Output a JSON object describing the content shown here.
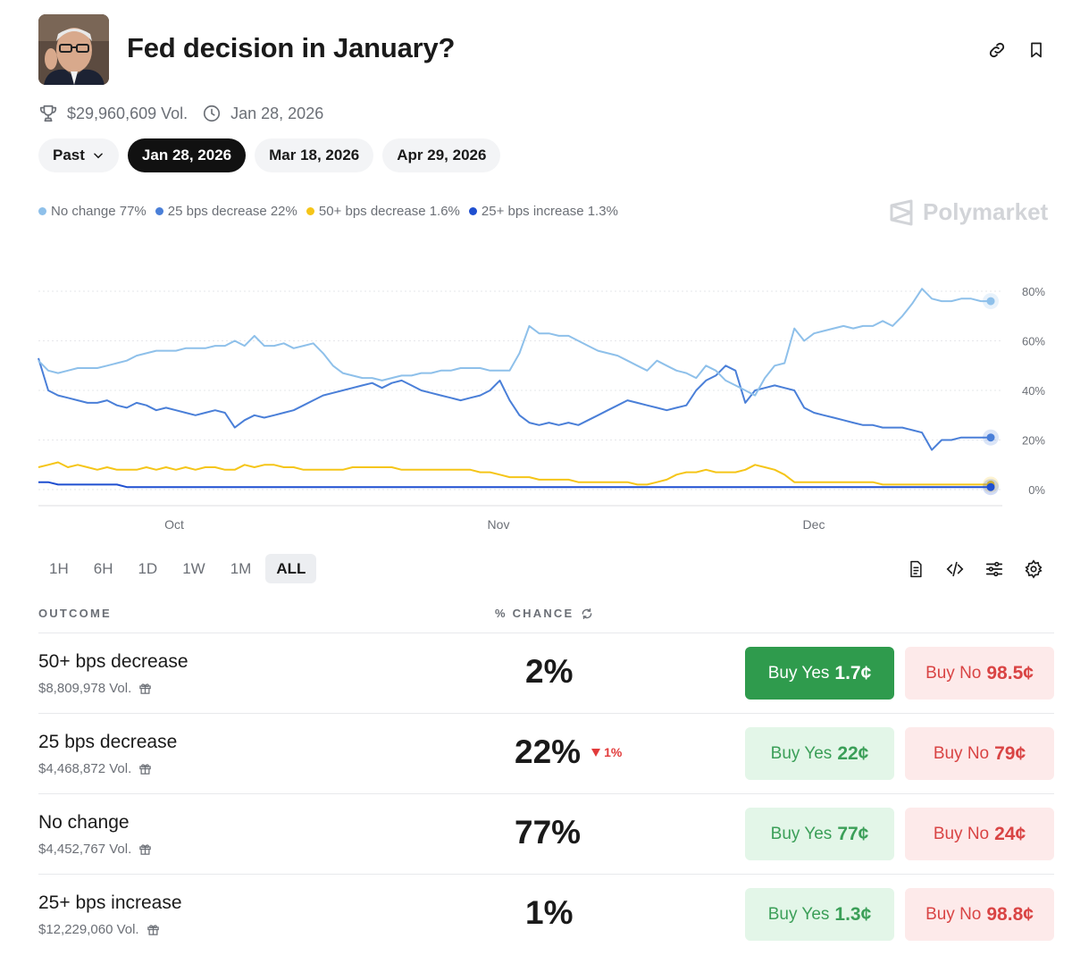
{
  "header": {
    "title": "Fed decision in January?",
    "volume": "$29,960,609 Vol.",
    "end_date": "Jan 28, 2026"
  },
  "date_tabs": [
    {
      "label": "Past",
      "active": false
    },
    {
      "label": "Jan 28, 2026",
      "active": true
    },
    {
      "label": "Mar 18, 2026",
      "active": false
    },
    {
      "label": "Apr 29, 2026",
      "active": false
    }
  ],
  "legend": [
    {
      "label": "No change 77%",
      "color": "#8ec0ea"
    },
    {
      "label": "25 bps decrease 22%",
      "color": "#4a7fd8"
    },
    {
      "label": "50+ bps decrease 1.6%",
      "color": "#f5c518"
    },
    {
      "label": "25+ bps increase 1.3%",
      "color": "#1f4fd0"
    }
  ],
  "brand": "Polymarket",
  "chart_data": {
    "type": "line",
    "x_ticks": [
      "Oct",
      "Nov",
      "Dec"
    ],
    "y_ticks": [
      "80%",
      "60%",
      "40%",
      "20%",
      "0%"
    ],
    "ylim": [
      0,
      80
    ],
    "series": [
      {
        "name": "No change",
        "color": "#8ec0ea",
        "values": [
          52,
          48,
          47,
          48,
          49,
          49,
          49,
          50,
          51,
          52,
          54,
          55,
          56,
          56,
          56,
          57,
          57,
          57,
          58,
          58,
          60,
          58,
          62,
          58,
          58,
          59,
          57,
          58,
          59,
          55,
          50,
          47,
          46,
          45,
          45,
          44,
          45,
          46,
          46,
          47,
          47,
          48,
          48,
          49,
          49,
          49,
          48,
          48,
          48,
          55,
          66,
          63,
          63,
          62,
          62,
          60,
          58,
          56,
          55,
          54,
          52,
          50,
          48,
          52,
          50,
          48,
          47,
          45,
          50,
          48,
          44,
          42,
          40,
          38,
          45,
          50,
          51,
          65,
          60,
          63,
          64,
          65,
          66,
          65,
          66,
          66,
          68,
          66,
          70,
          75,
          81,
          77,
          76,
          76,
          77,
          77,
          76,
          76
        ]
      },
      {
        "name": "25 bps decrease",
        "color": "#4a7fd8",
        "values": [
          53,
          40,
          38,
          37,
          36,
          35,
          35,
          36,
          34,
          33,
          35,
          34,
          32,
          33,
          32,
          31,
          30,
          31,
          32,
          31,
          25,
          28,
          30,
          29,
          30,
          31,
          32,
          34,
          36,
          38,
          39,
          40,
          41,
          42,
          43,
          41,
          43,
          44,
          42,
          40,
          39,
          38,
          37,
          36,
          37,
          38,
          40,
          44,
          36,
          30,
          27,
          26,
          27,
          26,
          27,
          26,
          28,
          30,
          32,
          34,
          36,
          35,
          34,
          33,
          32,
          33,
          34,
          40,
          44,
          46,
          50,
          48,
          35,
          40,
          41,
          42,
          41,
          40,
          33,
          31,
          30,
          29,
          28,
          27,
          26,
          26,
          25,
          25,
          25,
          24,
          23,
          16,
          20,
          20,
          21,
          21,
          21,
          21
        ]
      },
      {
        "name": "50+ bps decrease",
        "color": "#f5c518",
        "values": [
          9,
          10,
          11,
          9,
          10,
          9,
          8,
          9,
          8,
          8,
          8,
          9,
          8,
          9,
          8,
          9,
          8,
          9,
          9,
          8,
          8,
          10,
          9,
          10,
          10,
          9,
          9,
          8,
          8,
          8,
          8,
          8,
          9,
          9,
          9,
          9,
          9,
          8,
          8,
          8,
          8,
          8,
          8,
          8,
          8,
          7,
          7,
          6,
          5,
          5,
          5,
          4,
          4,
          4,
          4,
          3,
          3,
          3,
          3,
          3,
          3,
          2,
          2,
          3,
          4,
          6,
          7,
          7,
          8,
          7,
          7,
          7,
          8,
          10,
          9,
          8,
          6,
          3,
          3,
          3,
          3,
          3,
          3,
          3,
          3,
          3,
          2,
          2,
          2,
          2,
          2,
          2,
          2,
          2,
          2,
          2,
          2,
          2
        ]
      },
      {
        "name": "25+ bps increase",
        "color": "#1f4fd0",
        "values": [
          3,
          3,
          2,
          2,
          2,
          2,
          2,
          2,
          2,
          1,
          1,
          1,
          1,
          1,
          1,
          1,
          1,
          1,
          1,
          1,
          1,
          1,
          1,
          1,
          1,
          1,
          1,
          1,
          1,
          1,
          1,
          1,
          1,
          1,
          1,
          1,
          1,
          1,
          1,
          1,
          1,
          1,
          1,
          1,
          1,
          1,
          1,
          1,
          1,
          1,
          1,
          1,
          1,
          1,
          1,
          1,
          1,
          1,
          1,
          1,
          1,
          1,
          1,
          1,
          1,
          1,
          1,
          1,
          1,
          1,
          1,
          1,
          1,
          1,
          1,
          1,
          1,
          1,
          1,
          1,
          1,
          1,
          1,
          1,
          1,
          1,
          1,
          1,
          1,
          1,
          1,
          1,
          1,
          1,
          1,
          1,
          1,
          1
        ]
      }
    ]
  },
  "range_tabs": [
    {
      "label": "1H",
      "active": false
    },
    {
      "label": "6H",
      "active": false
    },
    {
      "label": "1D",
      "active": false
    },
    {
      "label": "1W",
      "active": false
    },
    {
      "label": "1M",
      "active": false
    },
    {
      "label": "ALL",
      "active": true
    }
  ],
  "table": {
    "outcome_header": "OUTCOME",
    "chance_header": "% CHANCE",
    "rows": [
      {
        "name": "50+ bps decrease",
        "volume": "$8,809,978 Vol.",
        "chance": "2%",
        "change": "",
        "yes_label": "Buy Yes",
        "yes_price": "1.7¢",
        "no_label": "Buy No",
        "no_price": "98.5¢"
      },
      {
        "name": "25 bps decrease",
        "volume": "$4,468,872 Vol.",
        "chance": "22%",
        "change": "1%",
        "yes_label": "Buy Yes",
        "yes_price": "22¢",
        "no_label": "Buy No",
        "no_price": "79¢"
      },
      {
        "name": "No change",
        "volume": "$4,452,767 Vol.",
        "chance": "77%",
        "change": "",
        "yes_label": "Buy Yes",
        "yes_price": "77¢",
        "no_label": "Buy No",
        "no_price": "24¢"
      },
      {
        "name": "25+ bps increase",
        "volume": "$12,229,060 Vol.",
        "chance": "1%",
        "change": "",
        "yes_label": "Buy Yes",
        "yes_price": "1.3¢",
        "no_label": "Buy No",
        "no_price": "98.8¢"
      }
    ]
  }
}
